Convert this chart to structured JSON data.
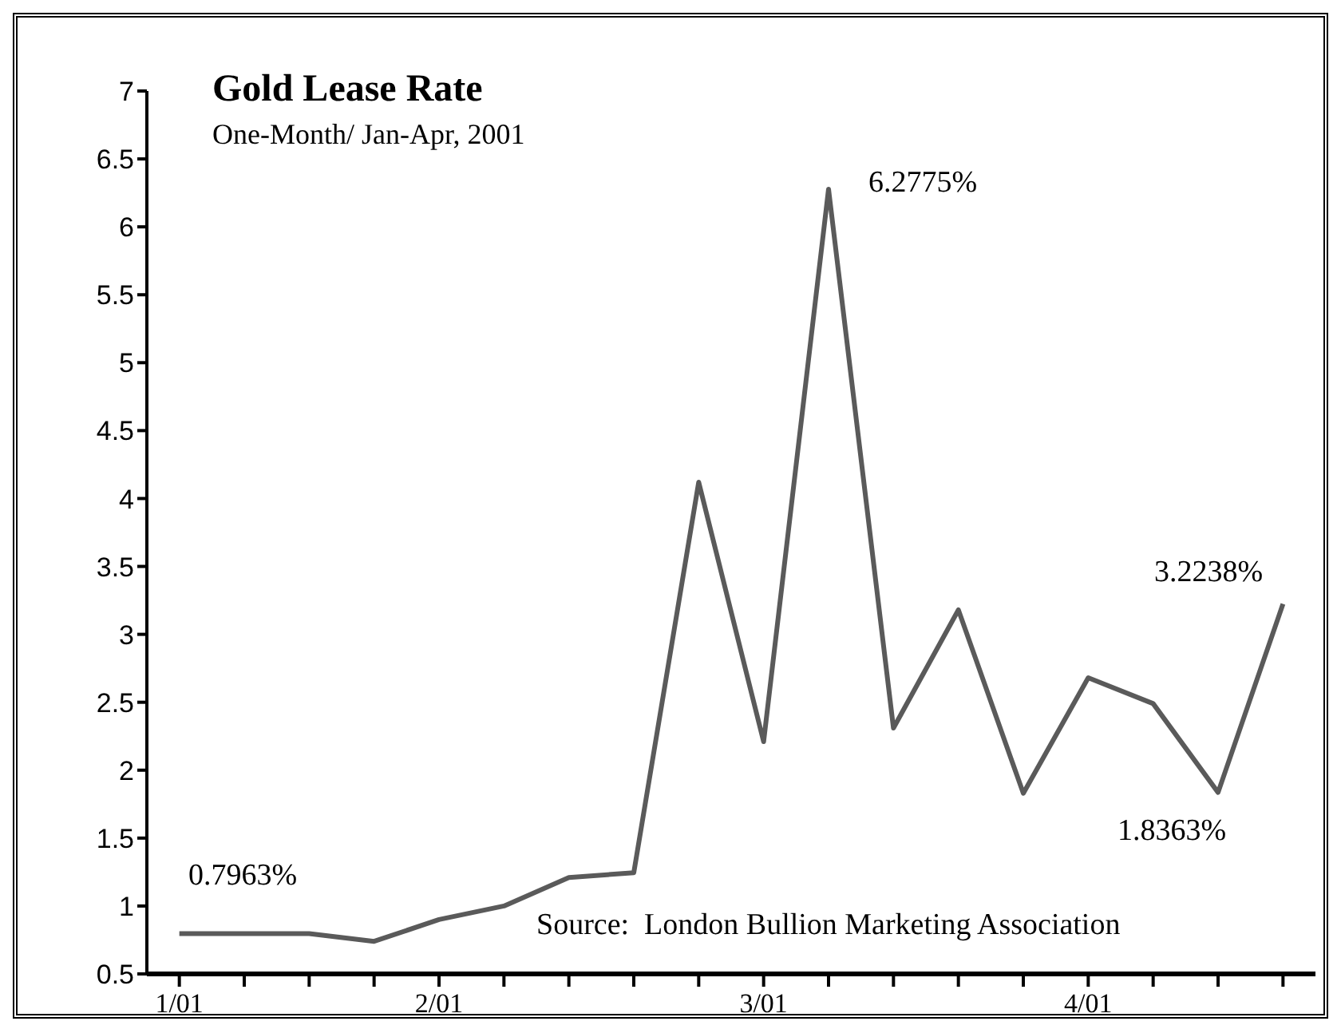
{
  "chart_data": {
    "type": "line",
    "title": "Gold Lease Rate",
    "subtitle": "One-Month/ Jan-Apr, 2001",
    "categories": [
      "1/01",
      null,
      null,
      null,
      "2/01",
      null,
      null,
      null,
      null,
      "3/01",
      null,
      null,
      null,
      null,
      "4/01",
      null,
      null,
      null
    ],
    "series": [
      {
        "color": "#5a5a5a",
        "values": [
          0.7963,
          0.7963,
          0.7963,
          0.74,
          0.9,
          1.0,
          1.21,
          1.245,
          4.12,
          2.21,
          6.2775,
          2.31,
          3.18,
          1.83,
          2.68,
          2.49,
          1.8363,
          3.2238
        ]
      }
    ],
    "ylim": [
      0.5,
      7
    ],
    "yticks": [
      0.5,
      1,
      1.5,
      2,
      2.5,
      3,
      3.5,
      4,
      4.5,
      5,
      5.5,
      6,
      6.5,
      7
    ],
    "grid": false,
    "legend": false,
    "marker": "none",
    "line_style": "solid",
    "annotations": [
      "0.7963%",
      "6.2775%",
      "3.2238%",
      "1.8363%",
      "Source:  London Bullion Marketing Association"
    ]
  }
}
